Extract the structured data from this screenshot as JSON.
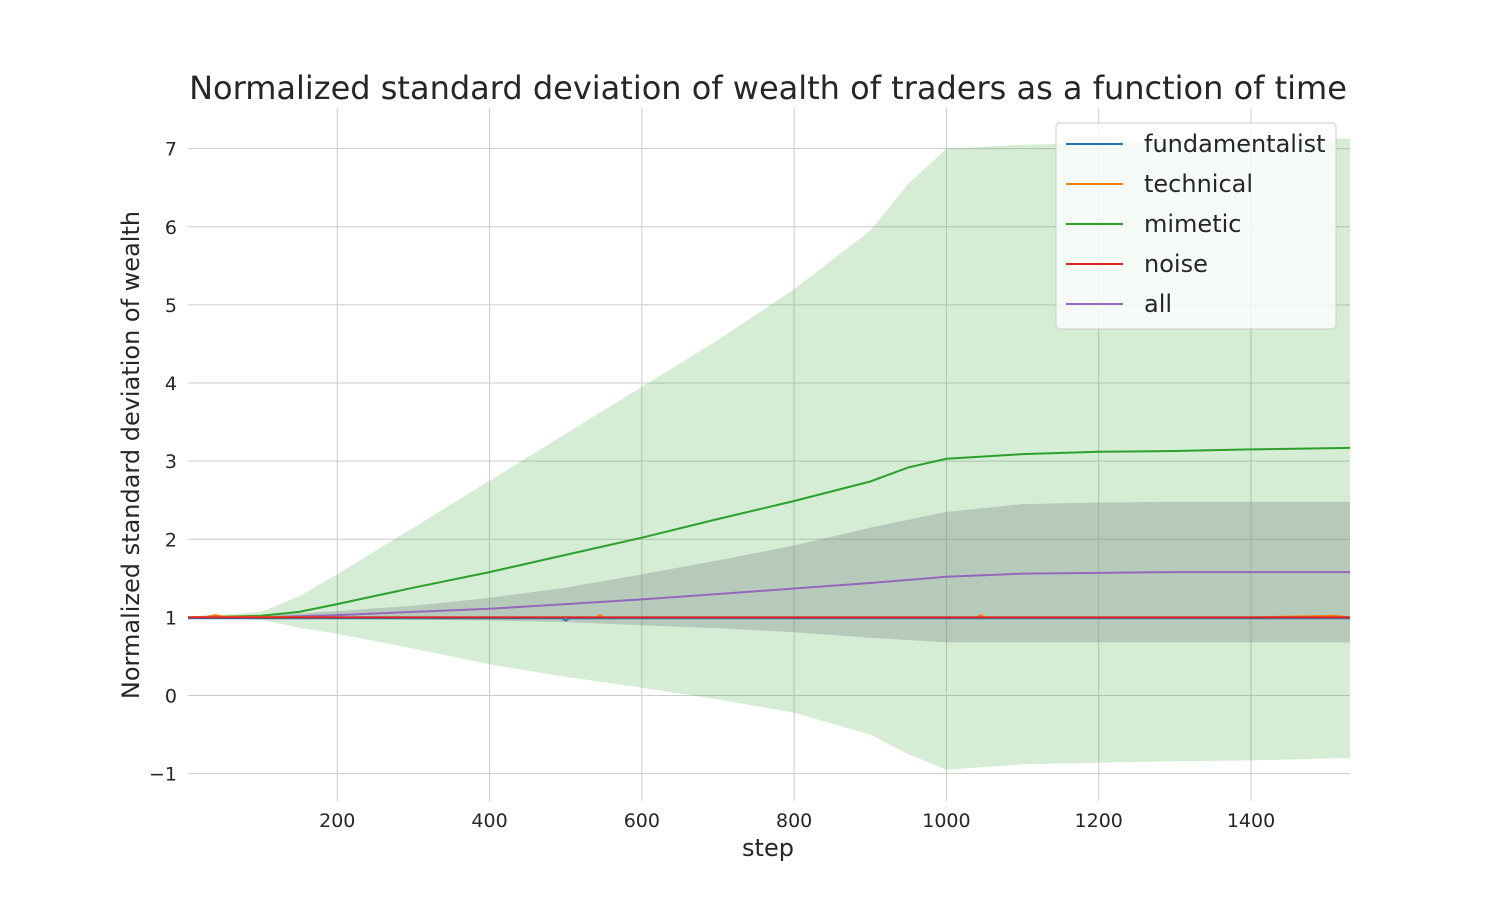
{
  "chart_data": {
    "type": "line",
    "title": "Normalized standard deviation of wealth of traders as a function of time",
    "xlabel": "step",
    "ylabel": "Normalized standard deviation of wealth",
    "xlim": [
      4,
      1530
    ],
    "ylim": [
      -1.35,
      7.52
    ],
    "grid": true,
    "legend_position": "top-right",
    "xticks": [
      {
        "value": 200,
        "label": "200"
      },
      {
        "value": 400,
        "label": "400"
      },
      {
        "value": 600,
        "label": "600"
      },
      {
        "value": 800,
        "label": "800"
      },
      {
        "value": 1000,
        "label": "1000"
      },
      {
        "value": 1200,
        "label": "1200"
      },
      {
        "value": 1400,
        "label": "1400"
      }
    ],
    "yticks": [
      {
        "value": -1,
        "label": "−1"
      },
      {
        "value": 0,
        "label": "0"
      },
      {
        "value": 1,
        "label": "1"
      },
      {
        "value": 2,
        "label": "2"
      },
      {
        "value": 3,
        "label": "3"
      },
      {
        "value": 4,
        "label": "4"
      },
      {
        "value": 5,
        "label": "5"
      },
      {
        "value": 6,
        "label": "6"
      },
      {
        "value": 7,
        "label": "7"
      }
    ],
    "series": [
      {
        "name": "fundamentalist",
        "color": "#1f77b4",
        "x": [
          4,
          200,
          400,
          495,
          500,
          505,
          600,
          800,
          1000,
          1200,
          1400,
          1530
        ],
        "y": [
          0.99,
          0.99,
          0.99,
          0.99,
          0.96,
          0.99,
          0.99,
          0.99,
          0.99,
          0.99,
          0.99,
          0.99
        ]
      },
      {
        "name": "technical",
        "color": "#ff7f0e",
        "x": [
          4,
          30,
          40,
          50,
          200,
          400,
          540,
          545,
          550,
          800,
          1040,
          1045,
          1050,
          1200,
          1400,
          1510,
          1530
        ],
        "y": [
          1.0,
          1.01,
          1.03,
          1.01,
          1.0,
          1.0,
          1.0,
          1.03,
          1.0,
          1.0,
          1.0,
          1.03,
          1.0,
          1.0,
          1.0,
          1.02,
          1.0
        ]
      },
      {
        "name": "mimetic",
        "color": "#2ca02c",
        "x": [
          4,
          100,
          150,
          200,
          300,
          400,
          500,
          600,
          700,
          800,
          900,
          950,
          1000,
          1100,
          1200,
          1300,
          1400,
          1530
        ],
        "y": [
          1.0,
          1.02,
          1.07,
          1.17,
          1.38,
          1.58,
          1.8,
          2.02,
          2.26,
          2.49,
          2.74,
          2.92,
          3.03,
          3.09,
          3.12,
          3.13,
          3.15,
          3.17
        ],
        "band_upper": [
          1.0,
          1.07,
          1.27,
          1.55,
          2.15,
          2.75,
          3.35,
          3.95,
          4.55,
          5.2,
          5.95,
          6.55,
          7.0,
          7.05,
          7.07,
          7.1,
          7.12,
          7.13
        ],
        "band_lower": [
          1.0,
          0.97,
          0.87,
          0.79,
          0.6,
          0.4,
          0.24,
          0.1,
          -0.05,
          -0.22,
          -0.5,
          -0.75,
          -0.95,
          -0.88,
          -0.86,
          -0.84,
          -0.83,
          -0.8
        ]
      },
      {
        "name": "noise",
        "color": "#d62728",
        "x": [
          4,
          200,
          400,
          600,
          800,
          1000,
          1200,
          1400,
          1530
        ],
        "y": [
          1.0,
          1.0,
          1.0,
          1.0,
          1.0,
          1.0,
          1.0,
          1.0,
          1.0
        ]
      },
      {
        "name": "all",
        "color": "#9467bd",
        "x": [
          4,
          100,
          200,
          300,
          400,
          500,
          600,
          700,
          800,
          900,
          1000,
          1100,
          1200,
          1300,
          1400,
          1530
        ],
        "y": [
          1.0,
          1.0,
          1.03,
          1.07,
          1.11,
          1.17,
          1.23,
          1.3,
          1.37,
          1.44,
          1.52,
          1.56,
          1.57,
          1.58,
          1.58,
          1.58
        ],
        "band_upper": [
          1.0,
          1.02,
          1.08,
          1.15,
          1.25,
          1.38,
          1.55,
          1.73,
          1.92,
          2.15,
          2.35,
          2.45,
          2.47,
          2.48,
          2.48,
          2.48
        ],
        "band_lower": [
          1.0,
          0.99,
          0.98,
          0.97,
          0.96,
          0.94,
          0.9,
          0.86,
          0.81,
          0.74,
          0.68,
          0.68,
          0.68,
          0.68,
          0.68,
          0.68
        ]
      }
    ],
    "band_colors": {
      "mimetic": "#2ca02c",
      "all": "#7f8c8d"
    }
  }
}
